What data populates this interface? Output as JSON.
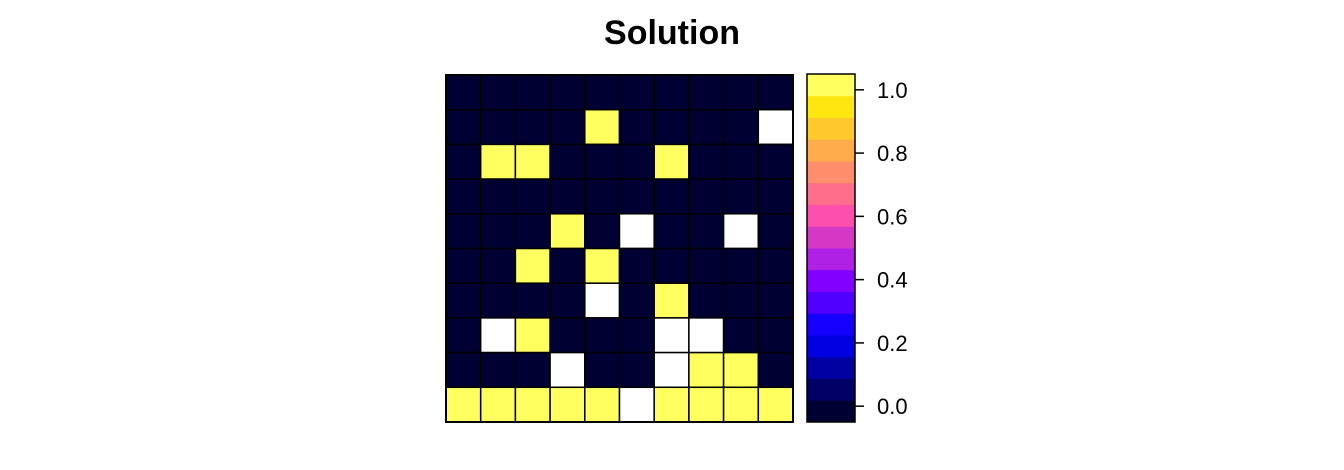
{
  "chart_data": {
    "type": "heatmap",
    "title": "Solution",
    "xlabel": "",
    "ylabel": "",
    "grid": true,
    "legend": "right",
    "rows": 10,
    "cols": 10,
    "missing_color": "#FFFFFF",
    "na_value": null,
    "values": [
      [
        0,
        0,
        0,
        0,
        0,
        0,
        0,
        0,
        0,
        0
      ],
      [
        0,
        0,
        0,
        0,
        1,
        0,
        0,
        0,
        0,
        null
      ],
      [
        0,
        1,
        1,
        0,
        0,
        0,
        1,
        0,
        0,
        0
      ],
      [
        0,
        0,
        0,
        0,
        0,
        0,
        0,
        0,
        0,
        0
      ],
      [
        0,
        0,
        0,
        1,
        0,
        null,
        0,
        0,
        null,
        0
      ],
      [
        0,
        0,
        1,
        0,
        1,
        0,
        0,
        0,
        0,
        0
      ],
      [
        0,
        0,
        0,
        0,
        null,
        0,
        1,
        0,
        0,
        0
      ],
      [
        0,
        null,
        1,
        0,
        0,
        0,
        null,
        null,
        0,
        0
      ],
      [
        0,
        0,
        0,
        null,
        0,
        0,
        null,
        1,
        1,
        0
      ],
      [
        1,
        1,
        1,
        1,
        1,
        null,
        1,
        1,
        1,
        1
      ]
    ],
    "color_scale": {
      "range": [
        -0.05,
        1.05
      ],
      "colors": [
        "#000033",
        "#000066",
        "#0000A0",
        "#0000E0",
        "#1500FF",
        "#4F00FF",
        "#8100FF",
        "#AF22E5",
        "#D638C6",
        "#FC4FAE",
        "#FF6E8A",
        "#FF8C6B",
        "#FFAA4B",
        "#FFC82D",
        "#FFE610",
        "#FFFF60"
      ],
      "ticks": [
        0.0,
        0.2,
        0.4,
        0.6,
        0.8,
        1.0
      ],
      "tick_labels": [
        "0.0",
        "0.2",
        "0.4",
        "0.6",
        "0.8",
        "1.0"
      ]
    }
  }
}
